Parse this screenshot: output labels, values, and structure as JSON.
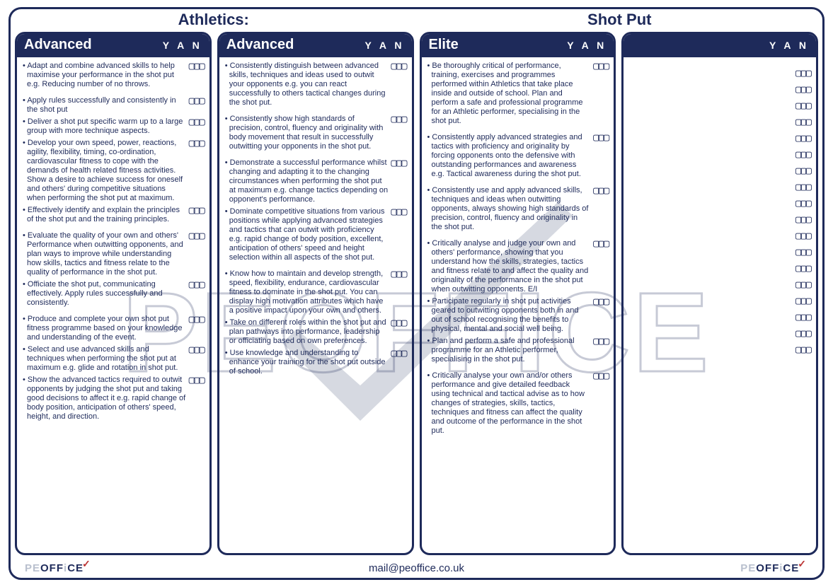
{
  "colors": {
    "primary": "#1e2a5a",
    "bg": "#ffffff",
    "logo_light": "#b9c0ce"
  },
  "titles": {
    "left": "Athletics:",
    "right": "Shot Put"
  },
  "yan_header": "Y A N",
  "checkbox_glyph": "▢▢▢",
  "footer": {
    "email": "mail@peoffice.co.uk",
    "logo_pe": "PE",
    "logo_off": "OFF",
    "logo_i": "i",
    "logo_ce": "CE"
  },
  "columns": [
    {
      "title": "Advanced",
      "items": [
        {
          "text": "Adapt and combine advanced skills to help maximise your performance in the shot put e.g. Reducing number of no throws.",
          "spaced": false
        },
        {
          "text": "Apply rules successfully and consistently in the shot put",
          "spaced": true
        },
        {
          "text": "Deliver a shot put specific warm up to a large group with more technique aspects.",
          "spaced": false
        },
        {
          "text": "Develop your own speed, power, reactions, agility, flexibility, timing, co-ordination, cardiovascular fitness to cope with the demands of health related fitness activities. Show a desire to achieve success for oneself and others' during competitive situations when performing the shot put at maximum.",
          "spaced": false
        },
        {
          "text": "Effectively identify and explain the principles of the shot put and the training principles.",
          "spaced": false
        },
        {
          "text": "Evaluate the quality of your own and others' Performance when outwitting opponents, and plan ways to improve while understanding how skills, tactics and fitness relate to the quality of performance in the shot put.",
          "spaced": true
        },
        {
          "text": "Officiate the shot put, communicating effectively. Apply rules successfully and consistently.",
          "spaced": false
        },
        {
          "text": "Produce and complete your own shot put fitness programme based on your knowledge and understanding of the event.",
          "spaced": true
        },
        {
          "text": "Select and use advanced skills and techniques when performing the shot put at maximum e.g. glide and rotation in shot put.",
          "spaced": false
        },
        {
          "text": "Show the advanced tactics required to outwit opponents by judging the shot put and taking good decisions to affect it e.g. rapid change of body position, anticipation of others' speed, height, and direction.",
          "spaced": false
        }
      ]
    },
    {
      "title": "Advanced",
      "items": [
        {
          "text": "Consistently distinguish between advanced skills, techniques and ideas used to outwit your opponents e.g. you can react successfully to others tactical changes during the shot put.",
          "spaced": false
        },
        {
          "text": "Consistently show high standards of precision, control, fluency and originality with body movement that result in successfully outwitting your opponents in the shot put.",
          "spaced": true
        },
        {
          "text": "Demonstrate a successful performance whilst changing and adapting it to the changing circumstances when performing the shot put at maximum e.g. change tactics depending on opponent's performance.",
          "spaced": true
        },
        {
          "text": "Dominate competitive situations from various positions while applying advanced strategies and tactics that can outwit with proficiency e.g. rapid change of body position, excellent, anticipation of others' speed and height selection within all aspects of the shot put.",
          "spaced": false
        },
        {
          "text": "Know how to maintain and develop strength, speed, flexibility, endurance, cardiovascular fitness to dominate in the shot put. You can display high motivation attributes which have a positive impact upon your own and others.",
          "spaced": true
        },
        {
          "text": "Take on different roles within the shot put and plan pathways into performance, leadership or officiating based on own preferences.",
          "spaced": false
        },
        {
          "text": "Use knowledge and understanding to enhance your training for the shot put outside of school.",
          "spaced": false
        }
      ]
    },
    {
      "title": "Elite",
      "items": [
        {
          "text": "Be thoroughly critical of performance, training, exercises and programmes performed within Athletics that take place inside and outside of school. Plan and perform a safe and professional programme for an Athletic performer, specialising in the shot put.",
          "spaced": false
        },
        {
          "text": "Consistently apply advanced strategies and tactics with proficiency and originality by forcing opponents onto the defensive with outstanding performances and awareness e.g. Tactical awareness during the shot put.",
          "spaced": true
        },
        {
          "text": "Consistently use and apply advanced skills, techniques and ideas when outwitting opponents, always showing high standards of precision, control, fluency and originality in the shot put.",
          "spaced": true
        },
        {
          "text": "Critically analyse and judge your own and others' performance, showing that you understand how the skills, strategies, tactics and fitness relate to and affect the quality and originality of the performance in the shot put when outwitting opponents. E/I",
          "spaced": true
        },
        {
          "text": "Participate regularly in shot put activities geared to outwitting opponents both in and out of school recognising the benefits to physical, mental and social well being.",
          "spaced": false
        },
        {
          "text": "Plan and perform a safe and professional programme for an Athletic performer, specialising in the shot put.",
          "spaced": false
        },
        {
          "text": "Critically analyse your own and/or others performance and give detailed feedback using technical and tactical advise as to how changes of strategies, skills, tactics, techniques and fitness can affect the quality and outcome of the performance in the shot put.",
          "spaced": true
        }
      ]
    },
    {
      "title": "",
      "blank_rows": 18
    }
  ]
}
